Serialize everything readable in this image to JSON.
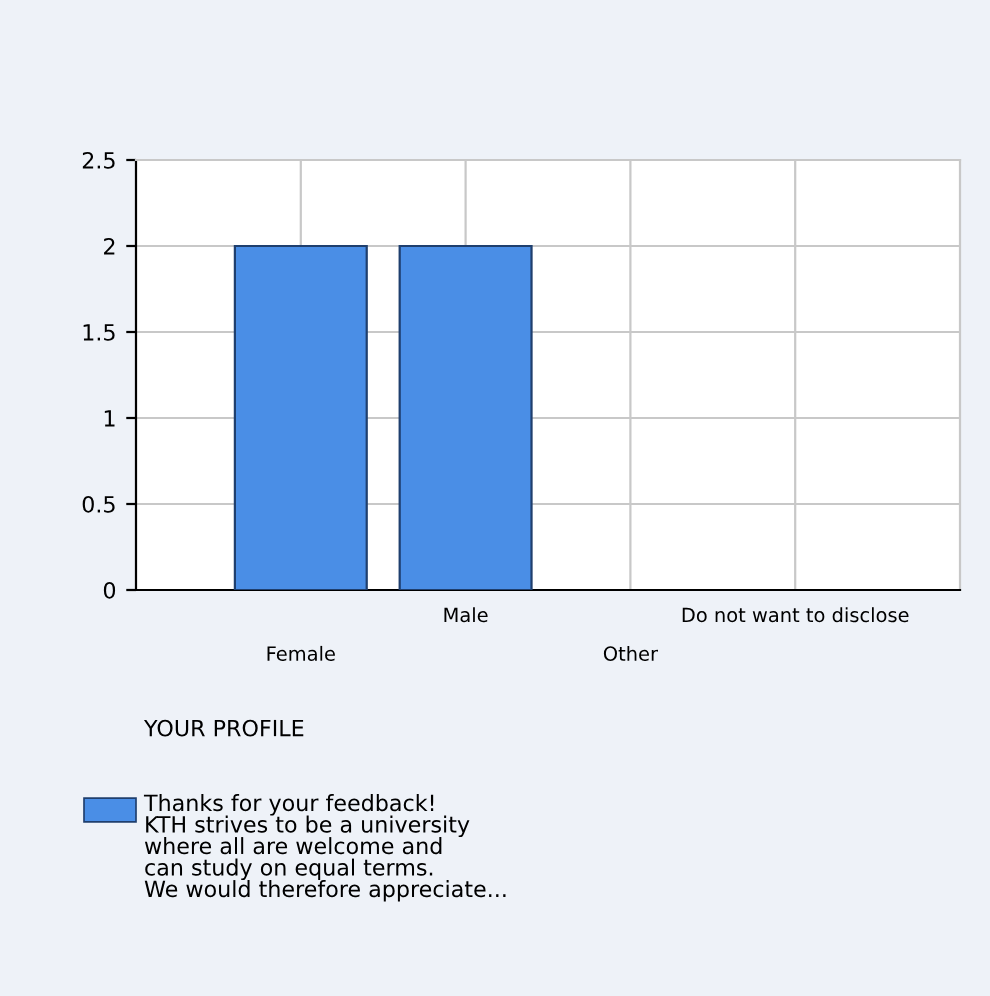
{
  "chart_data": {
    "type": "bar",
    "categories": [
      "Female",
      "Male",
      "Other",
      "Do not want to disclose"
    ],
    "series": [
      {
        "name": "Thanks for your feedback!\nKTH strives to be a university\nwhere all are welcome and\ncan study on equal terms.\nWe would therefore appreciate...",
        "color": "#4a8ee6",
        "values": [
          2,
          2,
          0,
          0
        ]
      }
    ],
    "legend_title": "YOUR PROFILE",
    "legend": "bottom left",
    "ylim": [
      0,
      2.5
    ],
    "yticks": [
      0,
      0.5,
      1,
      1.5,
      2,
      2.5
    ],
    "grid": true
  }
}
